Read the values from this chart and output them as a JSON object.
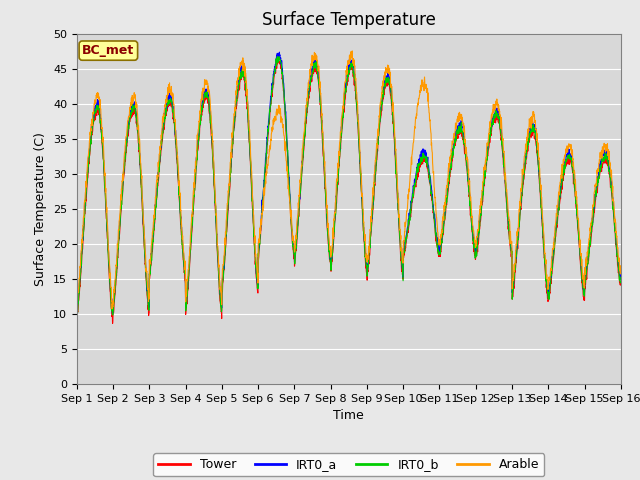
{
  "title": "Surface Temperature",
  "ylabel": "Surface Temperature (C)",
  "xlabel": "Time",
  "ylim": [
    0,
    50
  ],
  "yticks": [
    0,
    5,
    10,
    15,
    20,
    25,
    30,
    35,
    40,
    45,
    50
  ],
  "annotation": "BC_met",
  "legend_labels": [
    "Tower",
    "IRT0_a",
    "IRT0_b",
    "Arable"
  ],
  "legend_colors": [
    "#ff0000",
    "#0000ff",
    "#00cc00",
    "#ff9900"
  ],
  "fig_facecolor": "#e8e8e8",
  "plot_facecolor": "#d8d8d8",
  "title_fontsize": 12,
  "label_fontsize": 9,
  "tick_fontsize": 8,
  "n_days": 15,
  "pts_per_day": 144,
  "daily_peaks": [
    39,
    39,
    40,
    41,
    44,
    46,
    45,
    45,
    43,
    32,
    36,
    38,
    36,
    32,
    32
  ],
  "daily_troughs": [
    9,
    10,
    15,
    10,
    13,
    18,
    17,
    16,
    15,
    18,
    18,
    18,
    12,
    12,
    14
  ],
  "arable_extra": [
    0,
    0,
    0,
    0,
    0,
    -9,
    0,
    0,
    0,
    9,
    0,
    0,
    0,
    0,
    0
  ]
}
